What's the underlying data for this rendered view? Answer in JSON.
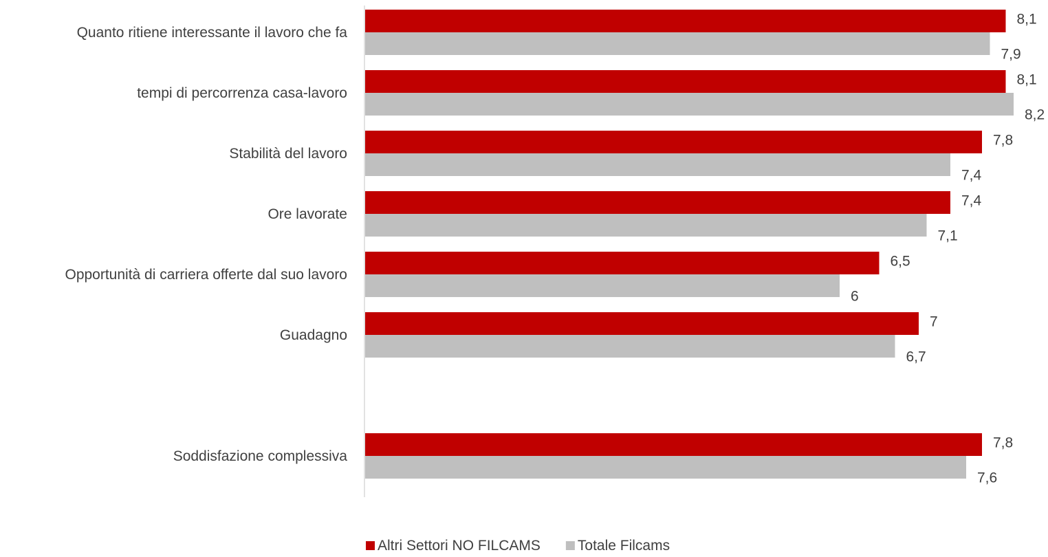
{
  "chart_data": {
    "type": "bar",
    "orientation": "horizontal",
    "categories": [
      "Quanto ritiene interessante il lavoro che fa",
      "tempi di percorrenza casa-lavoro",
      "Stabilità del lavoro",
      "Ore lavorate",
      "Opportunità di carriera offerte dal suo lavoro",
      "Guadagno",
      "",
      "Soddisfazione complessiva"
    ],
    "series": [
      {
        "name": "Altri Settori NO FILCAMS",
        "color": "#c00000",
        "values": [
          8.1,
          8.1,
          7.8,
          7.4,
          6.5,
          7,
          null,
          7.8
        ],
        "labels": [
          "8,1",
          "8,1",
          "7,8",
          "7,4",
          "6,5",
          "7",
          "",
          "7,8"
        ]
      },
      {
        "name": "Totale Filcams",
        "color": "#bfbfbf",
        "values": [
          7.9,
          8.2,
          7.4,
          7.1,
          6,
          6.7,
          null,
          7.6
        ],
        "labels": [
          "7,9",
          "8,2",
          "7,4",
          "7,1",
          "6",
          "6,7",
          "",
          "7,6"
        ]
      }
    ],
    "xlim": [
      0,
      8.2
    ],
    "grid": false,
    "legend": "bottom",
    "title": "",
    "xlabel": "",
    "ylabel": ""
  }
}
